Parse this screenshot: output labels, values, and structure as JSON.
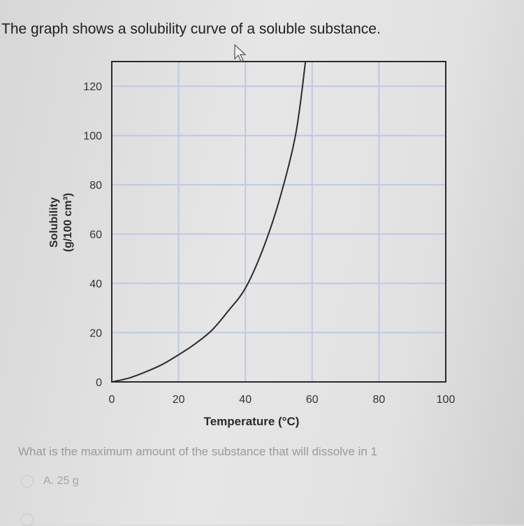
{
  "question": {
    "header": "The graph shows a solubility curve of a soluble substance.",
    "text": "What is the maximum amount of the substance that will dissolve in 1",
    "answers": [
      {
        "label": "A. 25 g"
      }
    ]
  },
  "chart_data": {
    "type": "line",
    "title": "",
    "xlabel": "Temperature (°C)",
    "ylabel": "Solubility",
    "ylabel_unit": "(g/100 cm³)",
    "xlim": [
      0,
      100
    ],
    "ylim": [
      0,
      130
    ],
    "x_ticks": [
      0,
      20,
      40,
      60,
      80,
      100
    ],
    "y_ticks": [
      0,
      20,
      40,
      60,
      80,
      100,
      120
    ],
    "grid": true,
    "series": [
      {
        "color": "#2b2b2b",
        "x": [
          0,
          5,
          10,
          15,
          20,
          25,
          30,
          35,
          40,
          45,
          50,
          55,
          58
        ],
        "y": [
          0,
          1.5,
          4,
          7,
          11,
          15.5,
          21,
          29,
          38,
          53,
          73,
          100,
          130
        ]
      }
    ],
    "colors": {
      "grid": "#bfc8e6",
      "axes": "#2b2b2b",
      "line": "#2b2b2b"
    }
  }
}
